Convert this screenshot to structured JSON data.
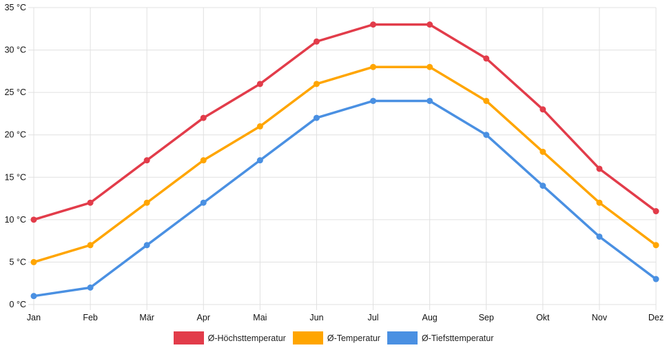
{
  "chart_data": {
    "type": "line",
    "title": "",
    "xlabel": "",
    "ylabel": "",
    "y_unit_suffix": " °C",
    "ylim": [
      0,
      35
    ],
    "y_ticks": [
      0,
      5,
      10,
      15,
      20,
      25,
      30,
      35
    ],
    "y_tick_labels": [
      "0 °C",
      "5 °C",
      "10 °C",
      "15 °C",
      "20 °C",
      "25 °C",
      "30 °C",
      "35 °C"
    ],
    "categories": [
      "Jan",
      "Feb",
      "Mär",
      "Apr",
      "Mai",
      "Jun",
      "Jul",
      "Aug",
      "Sep",
      "Okt",
      "Nov",
      "Dez"
    ],
    "grid": true,
    "legend_position": "bottom",
    "series": [
      {
        "name": "Ø-Höchsttemperatur",
        "color": "#e23c4a",
        "values": [
          10,
          12,
          17,
          22,
          26,
          31,
          33,
          33,
          29,
          23,
          16,
          11
        ]
      },
      {
        "name": "Ø-Temperatur",
        "color": "#ffa500",
        "values": [
          5,
          7,
          12,
          17,
          21,
          26,
          28,
          28,
          24,
          18,
          12,
          7
        ]
      },
      {
        "name": "Ø-Tiefsttemperatur",
        "color": "#4a90e2",
        "values": [
          1,
          2,
          7,
          12,
          17,
          22,
          24,
          24,
          20,
          14,
          8,
          3
        ]
      }
    ]
  }
}
